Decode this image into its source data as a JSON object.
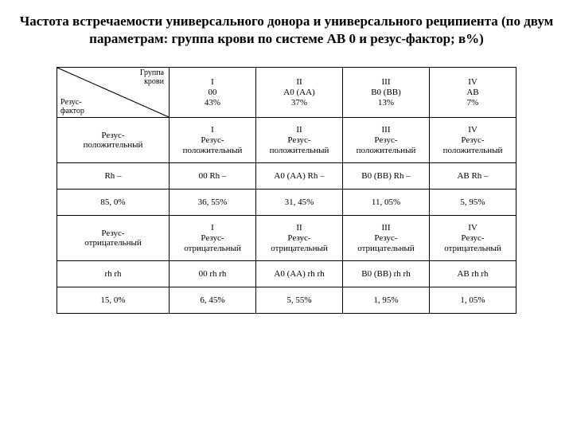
{
  "title": "Частота встречаемости универсального донора и универсального реципиента (по двум параметрам: группа крови по системе AB 0 и резус-фактор; в%)",
  "diag": {
    "top": "Группа\nкрови",
    "bottom": "Резус-\nфактор"
  },
  "groups": {
    "c1": {
      "num": "I",
      "code": "00",
      "pct": "43%"
    },
    "c2": {
      "num": "II",
      "code": "A0 (AA)",
      "pct": "37%"
    },
    "c3": {
      "num": "III",
      "code": "B0 (BB)",
      "pct": "13%"
    },
    "c4": {
      "num": "IV",
      "code": "AB",
      "pct": "7%"
    }
  },
  "block_pos": {
    "label": "Резус-\nположительный",
    "c1": "I\nРезус-\nположительный",
    "c2": "II\nРезус-\nположительный",
    "c3": "III\nРезус-\nположительный",
    "c4": "IV\nРезус-\nположительный",
    "rh_label": "Rh –",
    "rh_c1": "00 Rh –",
    "rh_c2": "A0 (AA) Rh –",
    "rh_c3": "B0 (BB) Rh –",
    "rh_c4": "AB Rh –",
    "pct_label": "85, 0%",
    "pct_c1": "36, 55%",
    "pct_c2": "31, 45%",
    "pct_c3": "11, 05%",
    "pct_c4": "5, 95%"
  },
  "block_neg": {
    "label": "Резус-\nотрицательный",
    "c1": "I\nРезус-\nотрицательный",
    "c2": "II\nРезус-\nотрицательный",
    "c3": "III\nРезус-\nотрицательный",
    "c4": "IV\nРезус-\nотрицательный",
    "rh_label": "rh rh",
    "rh_c1": "00 rh rh",
    "rh_c2": "A0 (AA) rh rh",
    "rh_c3": "B0 (BB) rh rh",
    "rh_c4": "AB rh rh",
    "pct_label": "15, 0%",
    "pct_c1": "6, 45%",
    "pct_c2": "5, 55%",
    "pct_c3": "1, 95%",
    "pct_c4": "1, 05%"
  }
}
